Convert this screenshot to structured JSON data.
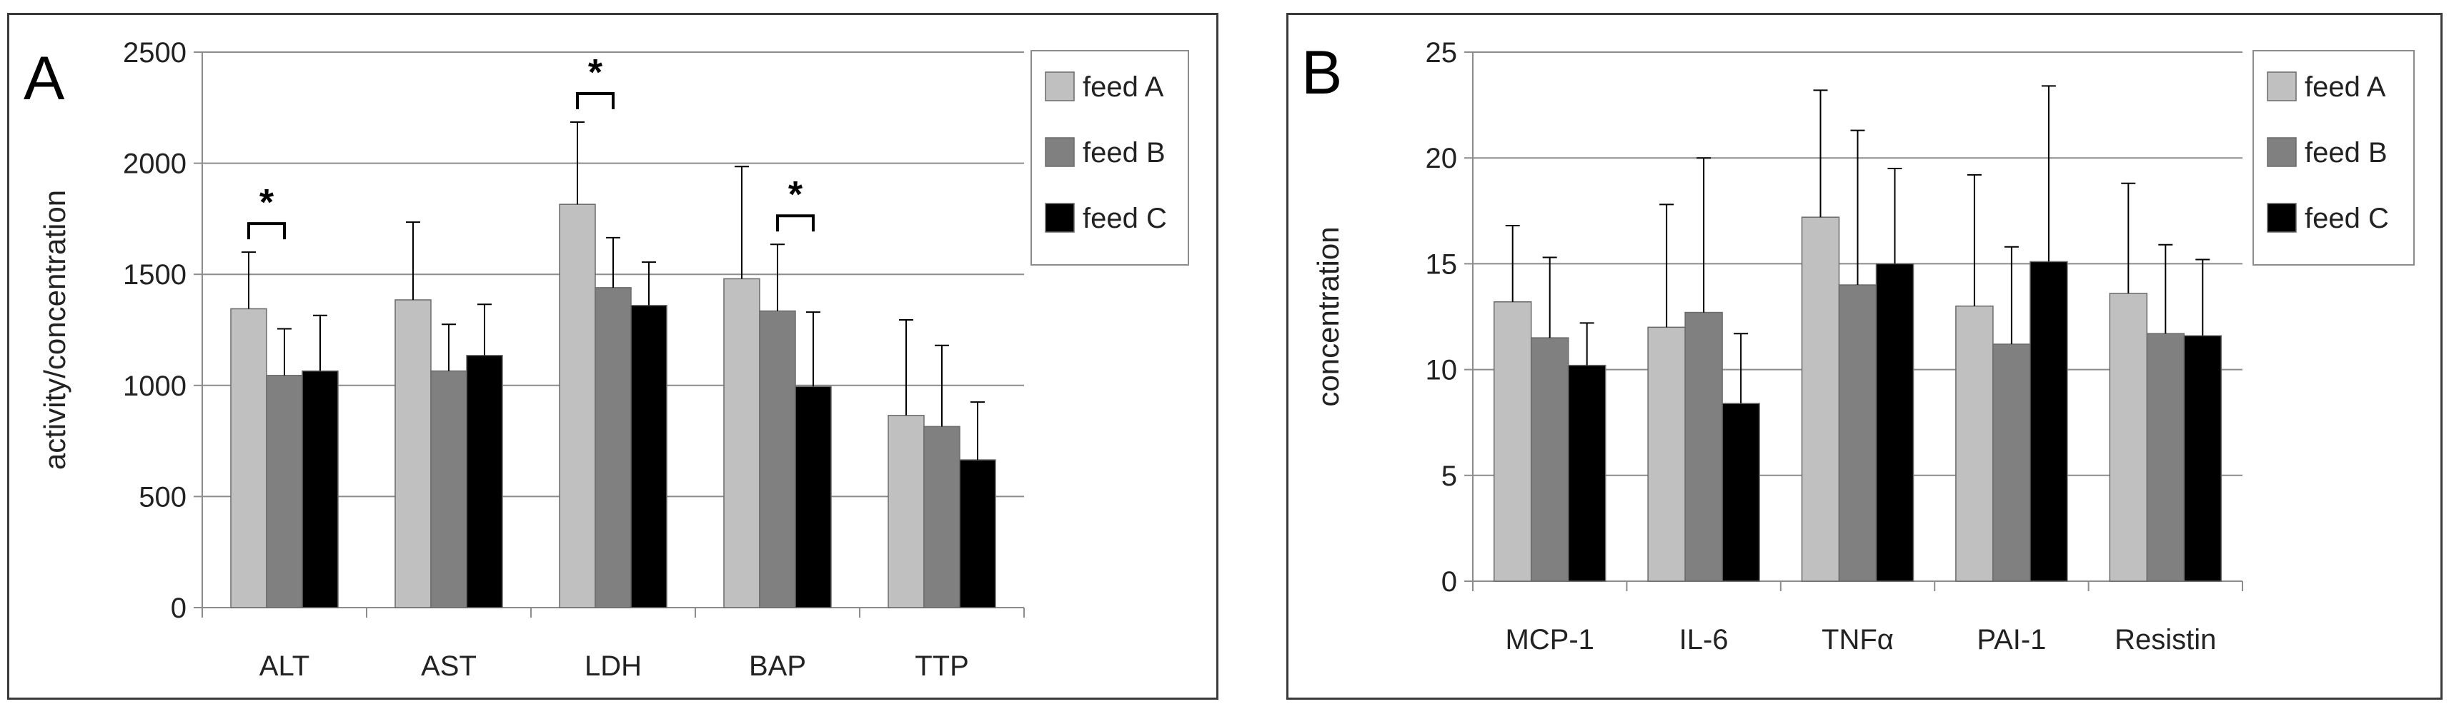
{
  "chart_data": [
    {
      "type": "bar",
      "panel_label": "A",
      "title": "",
      "xlabel": "",
      "ylabel": "activity/concentration",
      "ylim": [
        0,
        2500
      ],
      "yticks": [
        0,
        500,
        1000,
        1500,
        2000,
        2500
      ],
      "yticklabels": [
        "0",
        "500",
        "1000",
        "1500",
        "2000",
        "2500"
      ],
      "categories": [
        "ALT",
        "AST",
        "LDH",
        "BAP",
        "TTP"
      ],
      "series": [
        {
          "name": "feed A",
          "color": "#c0c0c0",
          "values": [
            1345,
            1385,
            1815,
            1480,
            865
          ],
          "errors": [
            255,
            350,
            370,
            505,
            430
          ]
        },
        {
          "name": "feed B",
          "color": "#808080",
          "values": [
            1045,
            1065,
            1440,
            1335,
            815
          ],
          "errors": [
            210,
            210,
            225,
            300,
            365
          ]
        },
        {
          "name": "feed C",
          "color": "#000000",
          "values": [
            1065,
            1135,
            1360,
            995,
            665
          ],
          "errors": [
            250,
            230,
            195,
            335,
            260
          ]
        }
      ],
      "significance": [
        {
          "category": "ALT",
          "series_from": 0,
          "series_to": 1,
          "label": "*"
        },
        {
          "category": "LDH",
          "series_from": 0,
          "series_to": 1,
          "label": "*"
        },
        {
          "category": "BAP",
          "series_from": 1,
          "series_to": 2,
          "label": "*"
        }
      ],
      "legend": "right"
    },
    {
      "type": "bar",
      "panel_label": "B",
      "title": "",
      "xlabel": "",
      "ylabel": "concentration",
      "ylim": [
        0,
        25
      ],
      "yticks": [
        0,
        5,
        10,
        15,
        20,
        25
      ],
      "yticklabels": [
        "0",
        "5",
        "10",
        "15",
        "20",
        "25"
      ],
      "categories": [
        "MCP-1",
        "IL-6",
        "TNFα",
        "PAI-1",
        "Resistin"
      ],
      "series": [
        {
          "name": "feed A",
          "color": "#c0c0c0",
          "values": [
            13.2,
            12.0,
            17.2,
            13.0,
            13.6
          ],
          "errors": [
            3.6,
            5.8,
            6.0,
            6.2,
            5.2
          ]
        },
        {
          "name": "feed B",
          "color": "#808080",
          "values": [
            11.5,
            12.7,
            14.0,
            11.2,
            11.7
          ],
          "errors": [
            3.8,
            7.3,
            7.3,
            4.6,
            4.2
          ]
        },
        {
          "name": "feed C",
          "color": "#000000",
          "values": [
            10.2,
            8.4,
            15.0,
            15.1,
            11.6
          ],
          "errors": [
            2.0,
            3.3,
            4.5,
            8.3,
            3.6
          ]
        }
      ],
      "significance": [],
      "legend": "right"
    }
  ]
}
